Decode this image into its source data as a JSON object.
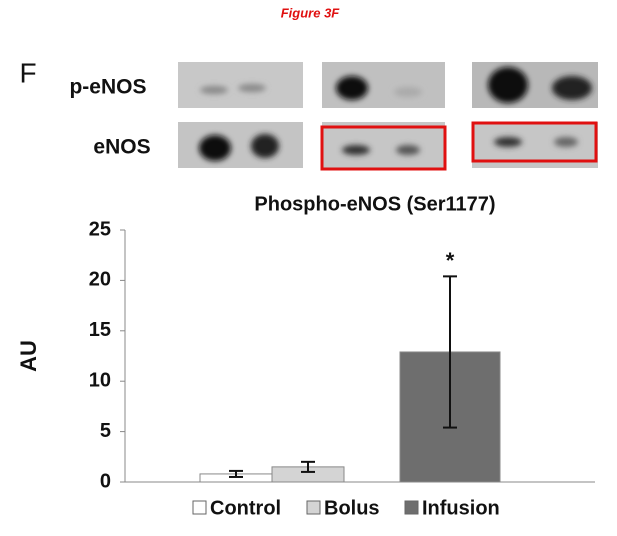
{
  "figure_label": "Figure 3F",
  "panel_label": "F",
  "blot_labels": [
    "p-eNOS",
    "eNOS"
  ],
  "chart_data": {
    "type": "bar",
    "title": "Phospho-eNOS (Ser1177)",
    "y_label": "AU",
    "categories": [
      "Control",
      "Bolus",
      "Infusion"
    ],
    "values": [
      0.8,
      1.5,
      12.9
    ],
    "errors": [
      0.3,
      0.5,
      7.5
    ],
    "colors": [
      "#ffffff",
      "#d4d4d4",
      "#6e6e6e"
    ],
    "annotations": [
      {
        "category": 2,
        "text": "*"
      }
    ],
    "ylim": [
      0,
      25
    ],
    "yticks": [
      0,
      5,
      10,
      15,
      20,
      25
    ],
    "grid": false,
    "legend": "bottom"
  }
}
